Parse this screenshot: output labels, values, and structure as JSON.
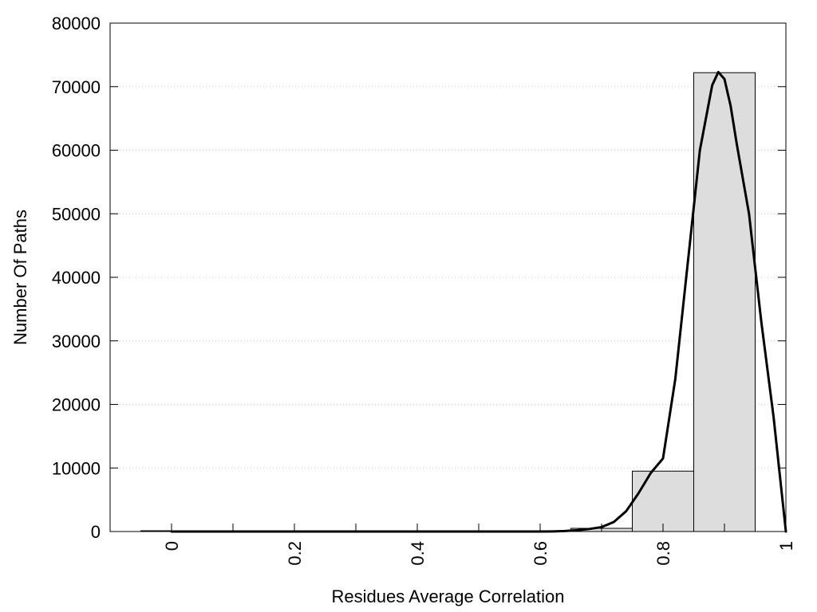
{
  "chart_data": {
    "type": "bar",
    "title": "",
    "xlabel": "Residues Average Correlation",
    "ylabel": "Number Of Paths",
    "xlim": [
      -0.1,
      1.0
    ],
    "ylim": [
      0,
      80000
    ],
    "x_ticks": [
      "0",
      "0.2",
      "0.4",
      "0.6",
      "0.8",
      "1"
    ],
    "x_tick_values": [
      0,
      0.2,
      0.4,
      0.6,
      0.8,
      1.0
    ],
    "x_minor_tick_values": [
      0.1,
      0.3,
      0.5,
      0.7,
      0.9
    ],
    "y_ticks": [
      "0",
      "10000",
      "20000",
      "30000",
      "40000",
      "50000",
      "60000",
      "70000",
      "80000"
    ],
    "y_tick_values": [
      0,
      10000,
      20000,
      30000,
      40000,
      50000,
      60000,
      70000,
      80000
    ],
    "grid": "horizontal dotted",
    "bars": {
      "bin_width": 0.1,
      "centers": [
        0.0,
        0.1,
        0.2,
        0.3,
        0.4,
        0.5,
        0.6,
        0.7,
        0.8,
        0.9
      ],
      "values": [
        0,
        0,
        0,
        0,
        0,
        0,
        0,
        500,
        9500,
        72200
      ],
      "fill": "#dddddd",
      "stroke": "#000000"
    },
    "curve": {
      "type": "line",
      "color": "#000000",
      "x": [
        0.0,
        0.1,
        0.2,
        0.3,
        0.4,
        0.5,
        0.6,
        0.62,
        0.64,
        0.66,
        0.68,
        0.7,
        0.72,
        0.74,
        0.76,
        0.78,
        0.8,
        0.82,
        0.84,
        0.86,
        0.88,
        0.89,
        0.9,
        0.91,
        0.92,
        0.94,
        0.96,
        0.98,
        1.0
      ],
      "y": [
        0,
        0,
        0,
        0,
        0,
        0,
        0,
        20,
        80,
        200,
        400,
        700,
        1500,
        3200,
        6000,
        9200,
        11500,
        24000,
        42000,
        60000,
        70200,
        72300,
        71200,
        67000,
        61000,
        50000,
        33000,
        18000,
        0
      ]
    }
  }
}
